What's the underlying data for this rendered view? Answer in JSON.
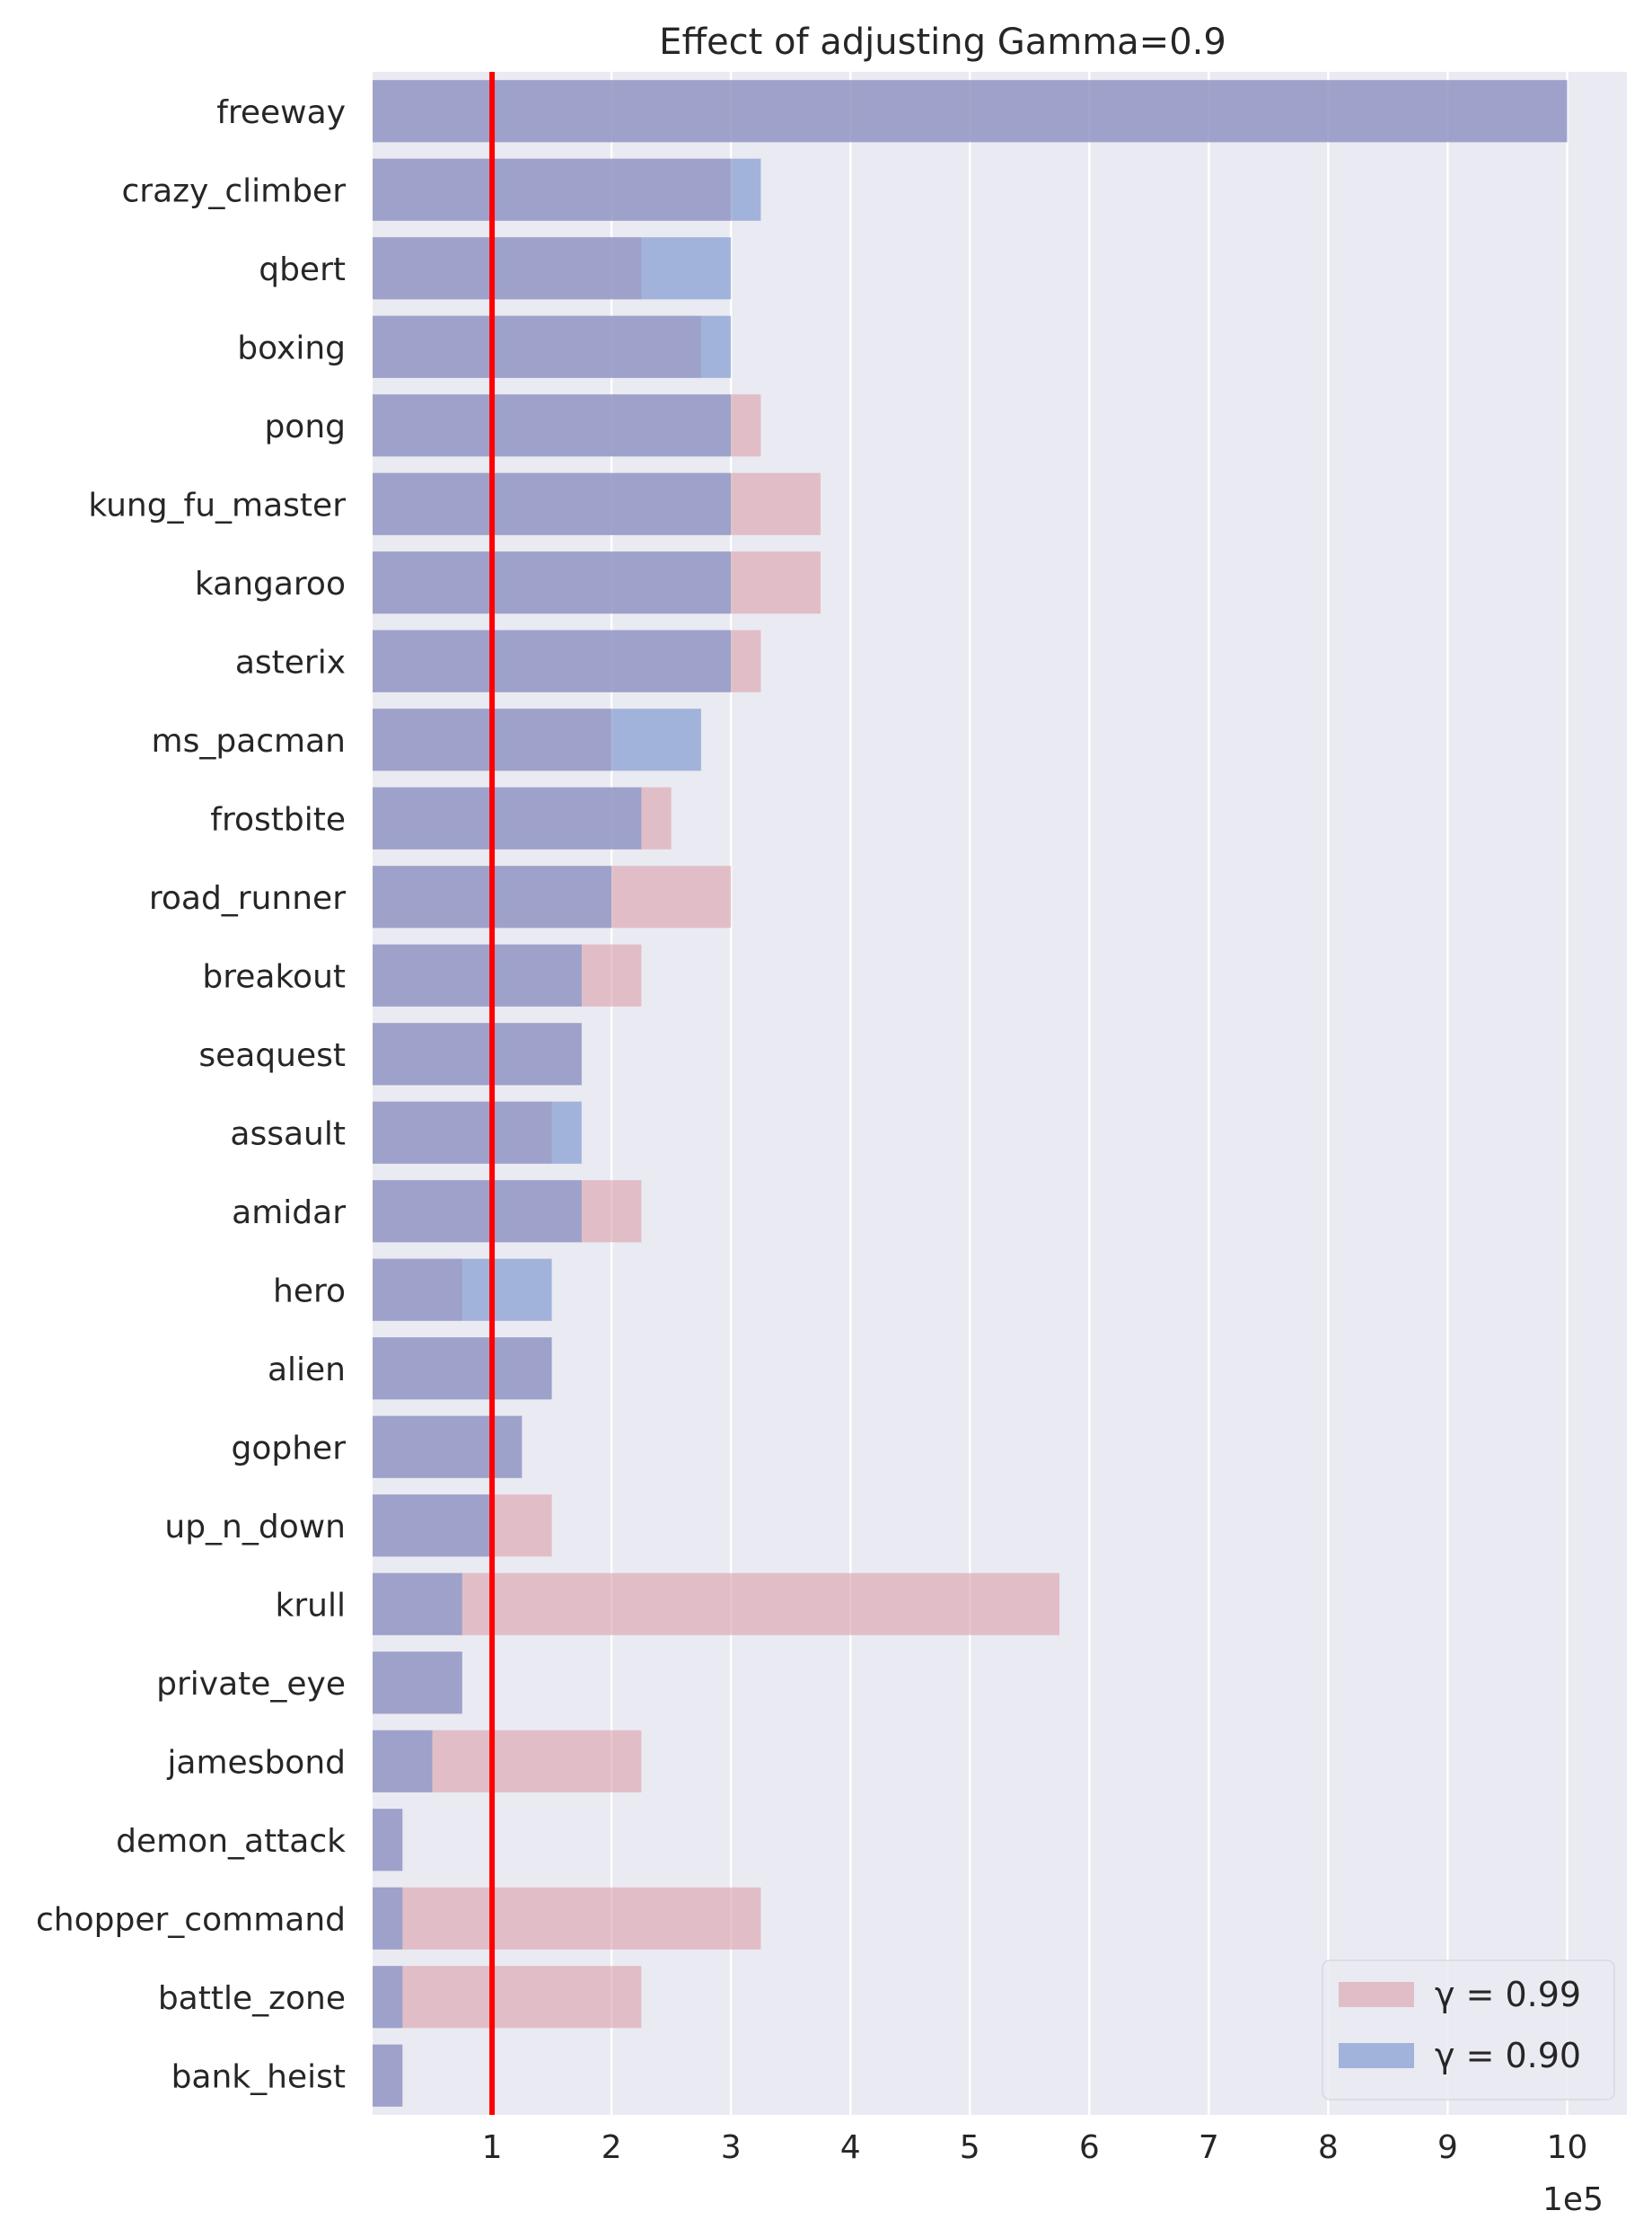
{
  "chart_data": {
    "type": "bar",
    "orientation": "horizontal",
    "title": "Effect of adjusting Gamma=0.9",
    "xlabel": "",
    "ylabel": "",
    "x_offset_label": "1e5",
    "xlim": [
      0,
      10.5
    ],
    "x_ticks": [
      1,
      2,
      3,
      4,
      5,
      6,
      7,
      8,
      9,
      10
    ],
    "x_tick_labels": [
      "1",
      "2",
      "3",
      "4",
      "5",
      "6",
      "7",
      "8",
      "9",
      "10"
    ],
    "grid": true,
    "legend_position": "bottom-right",
    "reference_line": {
      "x": 1,
      "color": "#ff0000"
    },
    "categories": [
      "freeway",
      "crazy_climber",
      "qbert",
      "boxing",
      "pong",
      "kung_fu_master",
      "kangaroo",
      "asterix",
      "ms_pacman",
      "frostbite",
      "road_runner",
      "breakout",
      "seaquest",
      "assault",
      "amidar",
      "hero",
      "alien",
      "gopher",
      "up_n_down",
      "krull",
      "private_eye",
      "jamesbond",
      "demon_attack",
      "chopper_command",
      "battle_zone",
      "bank_heist"
    ],
    "series": [
      {
        "name": "γ = 0.99",
        "color": "#dca3ad",
        "values": [
          10.0,
          3.0,
          2.25,
          2.75,
          3.25,
          3.75,
          3.75,
          3.25,
          2.0,
          2.5,
          3.0,
          2.25,
          1.75,
          1.5,
          2.25,
          0.75,
          1.5,
          1.25,
          1.5,
          5.75,
          0.75,
          2.25,
          0.25,
          3.25,
          2.25,
          0.25
        ]
      },
      {
        "name": "γ = 0.90",
        "color": "#7591cc",
        "values": [
          10.0,
          3.25,
          3.0,
          3.0,
          3.0,
          3.0,
          3.0,
          3.0,
          2.75,
          2.25,
          2.0,
          1.75,
          1.75,
          1.75,
          1.75,
          1.5,
          1.5,
          1.25,
          1.0,
          0.75,
          0.75,
          0.5,
          0.25,
          0.25,
          0.25,
          0.25
        ]
      }
    ]
  }
}
